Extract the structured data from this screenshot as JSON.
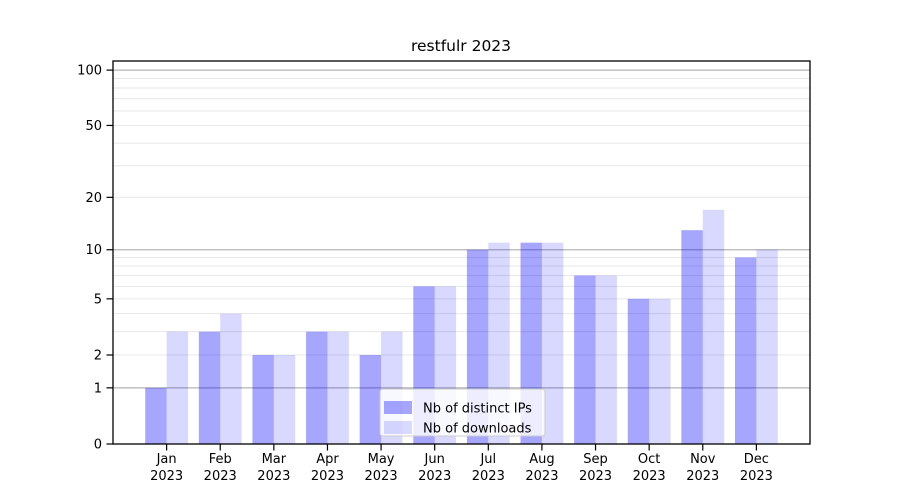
{
  "chart_data": {
    "type": "bar",
    "title": "restfulr 2023",
    "categories": [
      "Jan",
      "Feb",
      "Mar",
      "Apr",
      "May",
      "Jun",
      "Jul",
      "Aug",
      "Sep",
      "Oct",
      "Nov",
      "Dec"
    ],
    "x_year_label": "2023",
    "series": [
      {
        "name": "Nb of distinct IPs",
        "color": "rgba(0,0,255,0.35)",
        "color_on_white": "#a6a6ff",
        "values": [
          1,
          3,
          2,
          3,
          2,
          6,
          10,
          11,
          7,
          5,
          13,
          9
        ]
      },
      {
        "name": "Nb of downloads",
        "color": "rgba(0,0,255,0.15)",
        "color_on_white": "#d9d9ff",
        "values": [
          3,
          4,
          2,
          3,
          3,
          6,
          11,
          11,
          7,
          5,
          17,
          10
        ]
      }
    ],
    "xlabel": "",
    "ylabel": "",
    "yscale": "log1p",
    "ylim": [
      0,
      112
    ],
    "y_labeled_ticks": [
      100,
      50,
      20,
      10,
      5,
      2,
      1,
      0
    ],
    "y_major_gridlines": [
      1,
      10,
      100
    ],
    "y_minor_gridlines": [
      2,
      3,
      4,
      5,
      6,
      7,
      8,
      9,
      20,
      30,
      40,
      50,
      60,
      70,
      80,
      90
    ],
    "grid": true,
    "legend": {
      "position": "lower center"
    },
    "colors": {
      "major_gridline": "#b4b4b4",
      "minor_gridline": "#e7e7e7",
      "spine": "#000000",
      "legend_border": "#cccccc",
      "legend_background": "rgba(255,255,255,0.8)"
    }
  }
}
